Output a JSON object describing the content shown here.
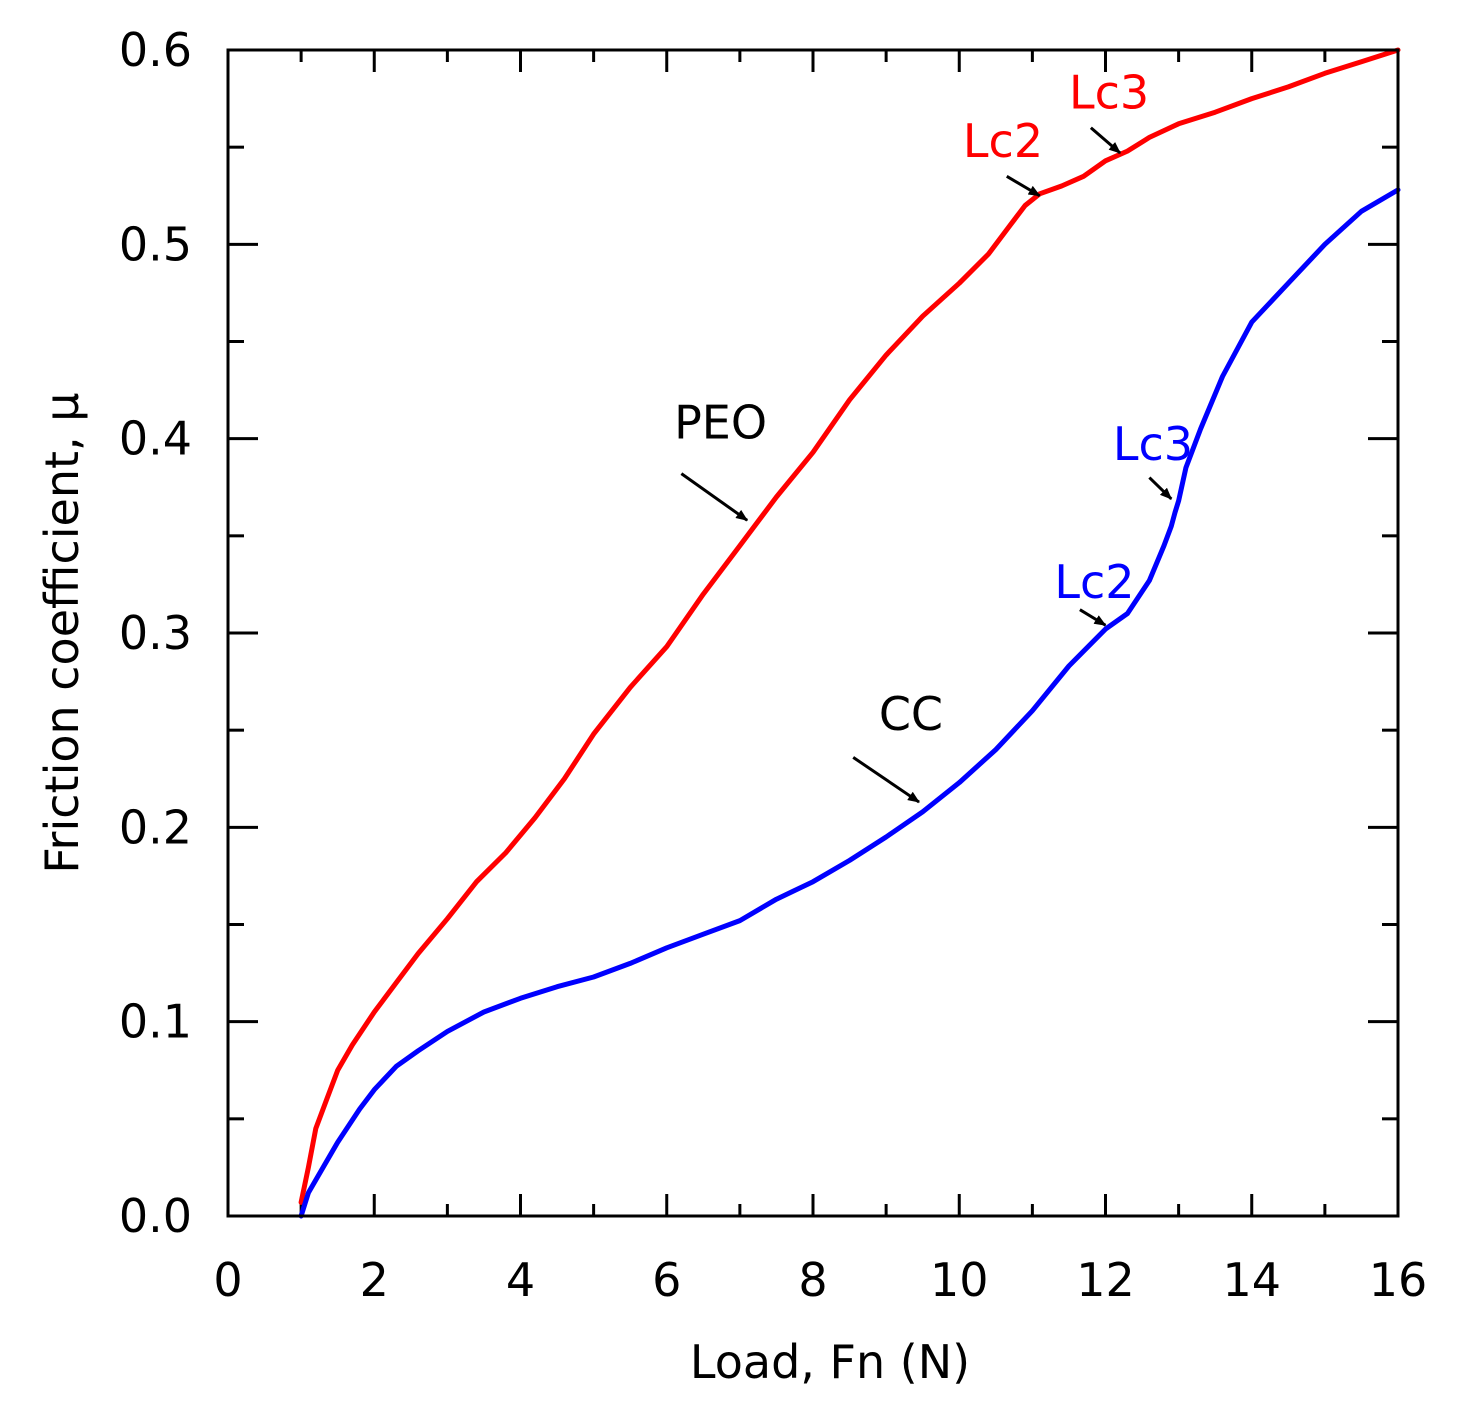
{
  "chart_data": {
    "type": "line",
    "title": "",
    "xlabel": "Load, Fn (N)",
    "ylabel": "Friction coefficient, μ",
    "xlim": [
      0,
      16
    ],
    "ylim": [
      0,
      0.6
    ],
    "x_ticks": [
      0,
      2,
      4,
      6,
      8,
      10,
      12,
      14,
      16
    ],
    "x_tick_labels": [
      "0",
      "2",
      "4",
      "6",
      "8",
      "10",
      "12",
      "14",
      "16"
    ],
    "y_ticks": [
      0,
      0.1,
      0.2,
      0.3,
      0.4,
      0.5,
      0.6
    ],
    "y_tick_labels": [
      "0.0",
      "0.1",
      "0.2",
      "0.3",
      "0.4",
      "0.5",
      "0.6"
    ],
    "grid": false,
    "series": [
      {
        "name": "PEO",
        "color": "#ff0000",
        "x": [
          1.0,
          1.1,
          1.2,
          1.35,
          1.5,
          1.7,
          2.0,
          2.3,
          2.6,
          3.0,
          3.4,
          3.8,
          4.2,
          4.6,
          5.0,
          5.5,
          6.0,
          6.5,
          7.0,
          7.5,
          8.0,
          8.5,
          9.0,
          9.5,
          10.0,
          10.4,
          10.7,
          10.9,
          11.1,
          11.4,
          11.7,
          12.0,
          12.3,
          12.6,
          13.0,
          13.5,
          14.0,
          14.5,
          15.0,
          15.5,
          16.0
        ],
        "y": [
          0.007,
          0.025,
          0.045,
          0.06,
          0.075,
          0.088,
          0.105,
          0.12,
          0.135,
          0.153,
          0.172,
          0.187,
          0.205,
          0.225,
          0.248,
          0.272,
          0.293,
          0.32,
          0.345,
          0.37,
          0.393,
          0.42,
          0.443,
          0.463,
          0.48,
          0.495,
          0.51,
          0.52,
          0.526,
          0.53,
          0.535,
          0.543,
          0.548,
          0.555,
          0.562,
          0.568,
          0.575,
          0.581,
          0.588,
          0.594,
          0.6
        ]
      },
      {
        "name": "CC",
        "color": "#0000ff",
        "x": [
          1.0,
          1.1,
          1.3,
          1.5,
          1.8,
          2.0,
          2.3,
          2.6,
          3.0,
          3.5,
          4.0,
          4.5,
          5.0,
          5.5,
          6.0,
          6.5,
          7.0,
          7.5,
          8.0,
          8.5,
          9.0,
          9.5,
          10.0,
          10.5,
          11.0,
          11.5,
          12.0,
          12.3,
          12.6,
          12.8,
          12.9,
          12.95,
          13.0,
          13.1,
          13.3,
          13.6,
          14.0,
          14.5,
          15.0,
          15.5,
          16.0
        ],
        "y": [
          0.0,
          0.012,
          0.025,
          0.038,
          0.055,
          0.065,
          0.077,
          0.085,
          0.095,
          0.105,
          0.112,
          0.118,
          0.123,
          0.13,
          0.138,
          0.145,
          0.152,
          0.163,
          0.172,
          0.183,
          0.195,
          0.208,
          0.223,
          0.24,
          0.26,
          0.283,
          0.302,
          0.31,
          0.327,
          0.345,
          0.355,
          0.362,
          0.368,
          0.385,
          0.405,
          0.432,
          0.46,
          0.48,
          0.5,
          0.517,
          0.528
        ]
      }
    ],
    "annotations": [
      {
        "label": "PEO",
        "color": "#000000",
        "text_at": [
          6.1,
          0.4
        ],
        "arrow_from": [
          6.2,
          0.382
        ],
        "arrow_to": [
          7.1,
          0.358
        ]
      },
      {
        "label": "CC",
        "color": "#000000",
        "text_at": [
          8.9,
          0.25
        ],
        "arrow_from": [
          8.55,
          0.236
        ],
        "arrow_to": [
          9.45,
          0.213
        ]
      },
      {
        "label": "Lc2",
        "color": "#ff0000",
        "text_at": [
          10.05,
          0.545
        ],
        "arrow_from": [
          10.65,
          0.535
        ],
        "arrow_to": [
          11.1,
          0.525
        ]
      },
      {
        "label": "Lc3",
        "color": "#ff0000",
        "text_at": [
          11.5,
          0.57
        ],
        "arrow_from": [
          11.8,
          0.56
        ],
        "arrow_to": [
          12.2,
          0.547
        ]
      },
      {
        "label": "Lc2",
        "color": "#0000ff",
        "text_at": [
          11.3,
          0.318
        ],
        "arrow_from": [
          11.65,
          0.312
        ],
        "arrow_to": [
          12.0,
          0.304
        ]
      },
      {
        "label": "Lc3",
        "color": "#0000ff",
        "text_at": [
          12.1,
          0.389
        ],
        "arrow_from": [
          12.6,
          0.38
        ],
        "arrow_to": [
          12.9,
          0.369
        ]
      }
    ]
  }
}
